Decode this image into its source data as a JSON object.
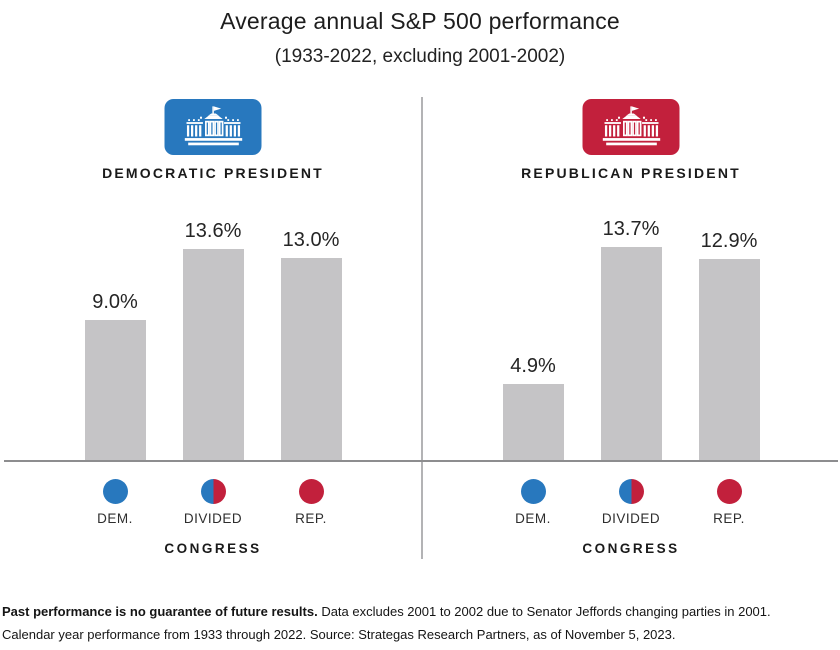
{
  "header": {
    "title": "Average annual S&P 500 performance",
    "subtitle": "(1933-2022, excluding 2001-2002)"
  },
  "colors": {
    "dem_blue": "#2878BE",
    "rep_red": "#C2203C",
    "bar_gray": "#C5C4C6",
    "axis_gray": "#8D8D8F",
    "divider_gray": "#B3B3B5"
  },
  "chart_data": {
    "type": "bar",
    "unit": "percent average annual return",
    "title": "Average annual S&P 500 performance",
    "subtitle": "(1933-2022, excluding 2001-2002)",
    "categories": [
      {
        "label": "DEM.",
        "dot": "dem"
      },
      {
        "label": "DIVIDED",
        "dot": "divided"
      },
      {
        "label": "REP.",
        "dot": "rep"
      }
    ],
    "category_axis_title": "CONGRESS",
    "panels": [
      {
        "title": "DEMOCRATIC PRESIDENT",
        "icon": "white-house",
        "icon_color_key": "dem_blue",
        "values": [
          9.0,
          13.6,
          13.0
        ],
        "value_labels": [
          "9.0%",
          "13.6%",
          "13.0%"
        ]
      },
      {
        "title": "REPUBLICAN PRESIDENT",
        "icon": "white-house",
        "icon_color_key": "rep_red",
        "values": [
          4.9,
          13.7,
          12.9
        ],
        "value_labels": [
          "4.9%",
          "13.7%",
          "12.9%"
        ]
      }
    ],
    "ylim": [
      0,
      15
    ],
    "grid": false,
    "legend_position": "below-axis"
  },
  "footnote": {
    "bold": "Past performance is no guarantee of future results.",
    "line1_rest": " Data excludes 2001 to 2002 due to Senator Jeffords changing parties in 2001.",
    "line2": "Calendar year performance from 1933 through 2022. Source: Strategas Research Partners, as of November 5, 2023."
  }
}
